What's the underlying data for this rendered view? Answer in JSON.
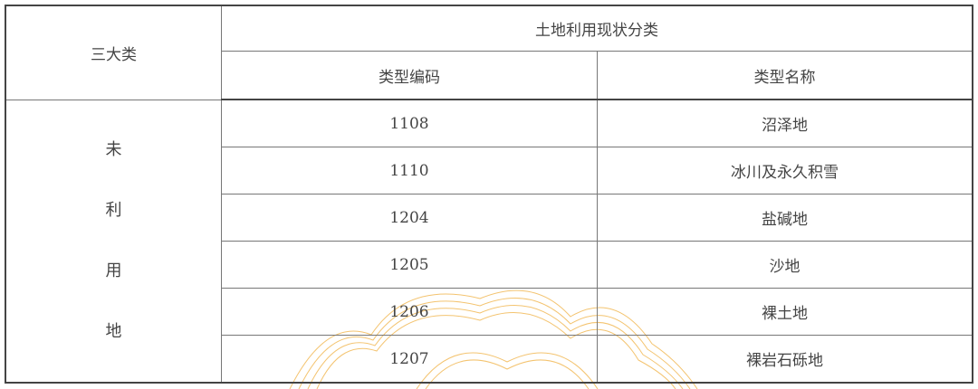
{
  "table": {
    "header": {
      "category_col": "三大类",
      "group_header": "土地利用现状分类",
      "code_col": "类型编码",
      "name_col": "类型名称"
    },
    "category": "未利用地",
    "category_chars": [
      "未",
      "利",
      "用",
      "地"
    ],
    "rows": [
      {
        "code": "1108",
        "name": "沼泽地"
      },
      {
        "code": "1110",
        "name": "冰川及永久积雪"
      },
      {
        "code": "1204",
        "name": "盐碱地"
      },
      {
        "code": "1205",
        "name": "沙地"
      },
      {
        "code": "1206",
        "name": "裸土地"
      },
      {
        "code": "1207",
        "name": "裸岩石砾地"
      }
    ]
  },
  "watermark_color": "#f0b040"
}
